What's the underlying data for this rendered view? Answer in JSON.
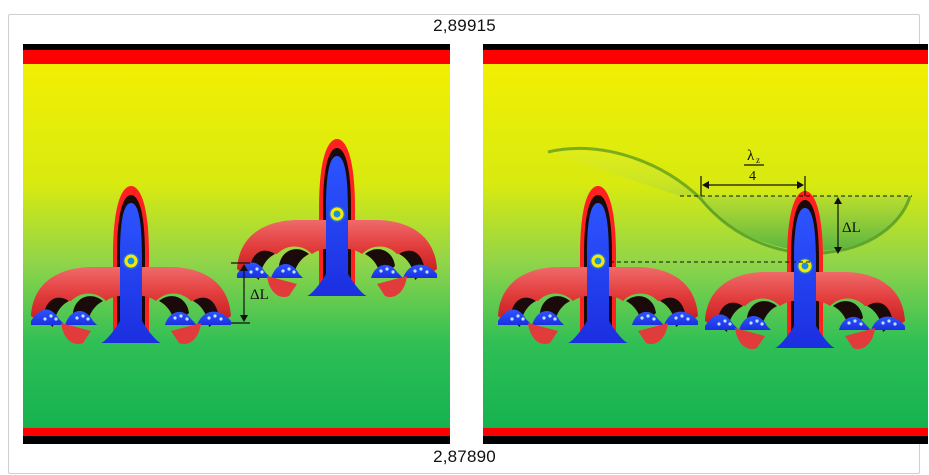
{
  "top_value": "2,89915",
  "bottom_value": "2,87890",
  "labels": {
    "delta_left": "ΔL",
    "delta_right": "ΔL",
    "lambda_num": "λ",
    "lambda_sub": "z",
    "lambda_den": "4"
  },
  "colors": {
    "gradient_top": "#f4ef00",
    "gradient_mid": "#8fd44a",
    "gradient_bottom": "#0fb050",
    "bar_red": "#ff0000",
    "bar_black": "#000000",
    "petal_red": "#e84a4a",
    "core_blue": "#1d3cff",
    "core_dot": "#f5e600"
  }
}
